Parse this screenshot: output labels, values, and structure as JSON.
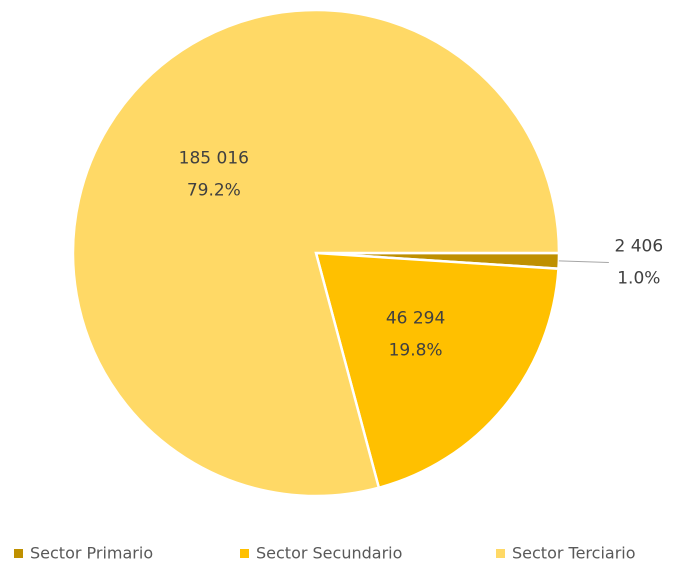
{
  "chart_data": {
    "type": "pie",
    "categories": [
      "Sector Primario",
      "Sector Secundario",
      "Sector Terciario"
    ],
    "values": [
      2406,
      46294,
      185016
    ],
    "value_labels": [
      "2 406",
      "46 294",
      "185 016"
    ],
    "percents": [
      1.0,
      19.8,
      79.2
    ],
    "percent_labels": [
      "1.0%",
      "19.8%",
      "79.2%"
    ],
    "colors": [
      "#bf9000",
      "#ffc000",
      "#ffd966"
    ],
    "legend": "bottom"
  }
}
